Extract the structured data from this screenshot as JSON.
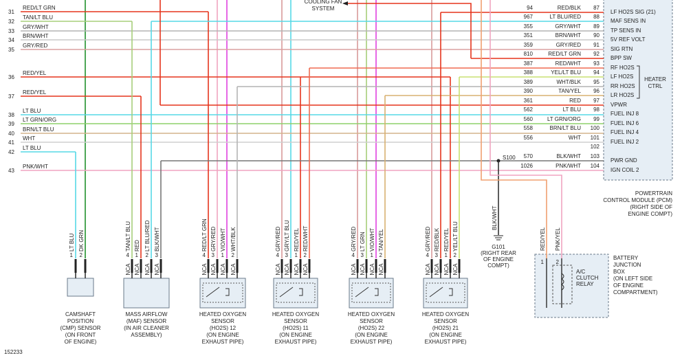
{
  "left_circuits": [
    {
      "number": "31",
      "color": "RED/LT GRN"
    },
    {
      "number": "32",
      "color": "TAN/LT BLU"
    },
    {
      "number": "33",
      "color": "GRY/WHT"
    },
    {
      "number": "34",
      "color": "BRN/WHT"
    },
    {
      "number": "35",
      "color": "GRY/RED"
    },
    {
      "number": "36",
      "color": "RED/YEL"
    },
    {
      "number": "37",
      "color": "RED/YEL"
    },
    {
      "number": "38",
      "color": "LT BLU"
    },
    {
      "number": "39",
      "color": "LT GRN/ORG"
    },
    {
      "number": "40",
      "color": "BRN/LT BLU"
    },
    {
      "number": "41",
      "color": "WHT"
    },
    {
      "number": "42",
      "color": "LT BLU"
    },
    {
      "number": "43",
      "color": "PNK/WHT"
    }
  ],
  "cooling_fan": [
    "COOLING FAN",
    "SYSTEM"
  ],
  "pcm_pins": [
    {
      "circuit": "94",
      "color": "RED/BLK",
      "pin": "87",
      "name": "LF HO2S SIG (21)"
    },
    {
      "circuit": "967",
      "color": "LT BLU/RED",
      "pin": "88",
      "name": "MAF SENS IN"
    },
    {
      "circuit": "355",
      "color": "GRY/WHT",
      "pin": "89",
      "name": "TP SENS IN"
    },
    {
      "circuit": "351",
      "color": "BRN/WHT",
      "pin": "90",
      "name": "5V REF VOLT"
    },
    {
      "circuit": "359",
      "color": "GRY/RED",
      "pin": "91",
      "name": "SIG RTN"
    },
    {
      "circuit": "810",
      "color": "RED/LT GRN",
      "pin": "92",
      "name": "BPP SW"
    },
    {
      "circuit": "387",
      "color": "RED/WHT",
      "pin": "93",
      "name": "RF HO2S"
    },
    {
      "circuit": "388",
      "color": "YEL/LT BLU",
      "pin": "94",
      "name": "LF HO2S"
    },
    {
      "circuit": "389",
      "color": "WHT/BLK",
      "pin": "95",
      "name": "RR HO2S"
    },
    {
      "circuit": "390",
      "color": "TAN/YEL",
      "pin": "96",
      "name": "LR HO2S"
    },
    {
      "circuit": "361",
      "color": "RED",
      "pin": "97",
      "name": "VPWR"
    },
    {
      "circuit": "562",
      "color": "LT BLU",
      "pin": "98",
      "name": "FUEL INJ 8"
    },
    {
      "circuit": "560",
      "color": "LT GRN/ORG",
      "pin": "99",
      "name": "FUEL INJ 6"
    },
    {
      "circuit": "558",
      "color": "BRN/LT BLU",
      "pin": "100",
      "name": "FUEL INJ 4"
    },
    {
      "circuit": "556",
      "color": "WHT",
      "pin": "101",
      "name": "FUEL INJ 2"
    },
    {
      "pin": "102"
    },
    {
      "circuit": "570",
      "color": "BLK/WHT",
      "pin": "103",
      "name": "PWR GND"
    },
    {
      "circuit": "1026",
      "color": "PNK/WHT",
      "pin": "104",
      "name": "IGN COIL 2"
    }
  ],
  "heater_ctrl": [
    "HEATER",
    "CTRL"
  ],
  "splice": "S100",
  "pcm_label": [
    "POWERTRAIN",
    "CONTROL MODULE (PCM)",
    "(RIGHT SIDE OF",
    "ENGINE COMPT)"
  ],
  "ground": {
    "wire": "BLK/WHT",
    "label": [
      "G101",
      "(RIGHT REAR",
      "OF ENGINE",
      "COMPT)"
    ]
  },
  "relay": {
    "pins": [
      {
        "number": "1",
        "wire": "RED/YEL"
      },
      {
        "number": "2",
        "wire": "PNK/YEL"
      }
    ],
    "label": [
      "A/C",
      "CLUTCH",
      "RELAY"
    ]
  },
  "junction_box": [
    "BATTERY",
    "JUNCTION",
    "BOX",
    "(ON LEFT SIDE",
    "OF ENGINE",
    "COMPARTMENT)"
  ],
  "components": [
    {
      "name": [
        "CAMSHAFT",
        "POSITION",
        "(CMP) SENSOR",
        "(ON FRONT",
        "OF ENGINE)"
      ],
      "pins": [
        {
          "number": "1",
          "wire": "LT BLU"
        },
        {
          "number": "2",
          "wire": "DK GRN"
        }
      ]
    },
    {
      "name": [
        "MASS AIRFLOW",
        "(MAF) SENSOR",
        "(IN AIR CLEANER",
        "ASSEMBLY)"
      ],
      "pins": [
        {
          "number": "4",
          "wire": "TAN/LT BLU",
          "connector": "NCA"
        },
        {
          "number": "1",
          "wire": "RED",
          "connector": "NCA"
        },
        {
          "number": "2",
          "wire": "LT BLU/RED",
          "connector": "NCA"
        },
        {
          "number": "3",
          "wire": "BLK/WHT",
          "connector": "NCA"
        }
      ]
    },
    {
      "name": [
        "HEATED OXYGEN",
        "SENSOR",
        "(HO2S) 12",
        "(ON ENGINE",
        "EXHAUST PIPE)"
      ],
      "pins": [
        {
          "number": "4",
          "wire": "RED/LT GRN",
          "connector": "NCA"
        },
        {
          "number": "3",
          "wire": "GRY/RED",
          "connector": "NCA"
        },
        {
          "number": "1",
          "wire": "VIO/WHT",
          "connector": "NCA"
        },
        {
          "number": "2",
          "wire": "WHT/BLK",
          "connector": "NCA"
        }
      ]
    },
    {
      "name": [
        "HEATED OXYGEN",
        "SENSOR",
        "(HO2S) 11",
        "(ON ENGINE",
        "EXHAUST PIPE)"
      ],
      "pins": [
        {
          "number": "4",
          "wire": "GRY/RED",
          "connector": "NCA"
        },
        {
          "number": "3",
          "wire": "GRY/LT BLU",
          "connector": "NCA"
        },
        {
          "number": "1",
          "wire": "RED/YEL",
          "connector": "NCA"
        },
        {
          "number": "2",
          "wire": "RED/WHT",
          "connector": "NCA"
        }
      ]
    },
    {
      "name": [
        "HEATED OXYGEN",
        "SENSOR",
        "(HO2S) 22",
        "(ON ENGINE",
        "EXHAUST PIPE)"
      ],
      "pins": [
        {
          "number": "4",
          "wire": "GRY/RED",
          "connector": "NCA"
        },
        {
          "number": "3",
          "wire": "LT GRN",
          "connector": "NCA"
        },
        {
          "number": "1",
          "wire": "VIO/WHT",
          "connector": "NCA"
        },
        {
          "number": "2",
          "wire": "TAN/YEL",
          "connector": "NCA"
        }
      ]
    },
    {
      "name": [
        "HEATED OXYGEN",
        "SENSOR",
        "(HO2S) 21",
        "(ON ENGINE",
        "EXHAUST PIPE)"
      ],
      "pins": [
        {
          "number": "4",
          "wire": "GRY/RED",
          "connector": "NCA"
        },
        {
          "number": "3",
          "wire": "RED/BLK",
          "connector": "NCA"
        },
        {
          "number": "1",
          "wire": "RED/YEL",
          "connector": "NCA"
        },
        {
          "number": "2",
          "wire": "YEL/LT BLU",
          "connector": "NCA"
        }
      ]
    }
  ],
  "figure_id": "152233"
}
